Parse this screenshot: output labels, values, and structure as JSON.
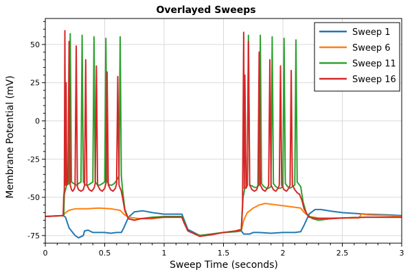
{
  "chart_data": {
    "type": "line",
    "title": "Overlayed Sweeps",
    "xlabel": "Sweep Time (seconds)",
    "ylabel": "Membrane Potential (mV)",
    "xlim": [
      0,
      3
    ],
    "ylim": [
      -80,
      67
    ],
    "xticks": [
      0,
      0.5,
      1,
      1.5,
      2,
      2.5,
      3
    ],
    "xtick_labels": [
      "0",
      "0.5",
      "1",
      "1.5",
      "2",
      "2.5",
      "3"
    ],
    "yticks": [
      -75,
      -50,
      -25,
      0,
      25,
      50
    ],
    "ytick_labels": [
      "-75",
      "-50",
      "-25",
      "0",
      "25",
      "50"
    ],
    "grid": true,
    "legend_position": "top-right",
    "series": [
      {
        "name": "Sweep 1",
        "color": "#1f77b4",
        "points": [
          [
            0,
            -62.5
          ],
          [
            0.15,
            -62
          ],
          [
            0.17,
            -63
          ],
          [
            0.2,
            -70
          ],
          [
            0.25,
            -75
          ],
          [
            0.28,
            -76.5
          ],
          [
            0.32,
            -75
          ],
          [
            0.33,
            -72
          ],
          [
            0.36,
            -71.5
          ],
          [
            0.4,
            -73
          ],
          [
            0.5,
            -73
          ],
          [
            0.55,
            -73.5
          ],
          [
            0.6,
            -73
          ],
          [
            0.64,
            -73
          ],
          [
            0.66,
            -70
          ],
          [
            0.7,
            -63
          ],
          [
            0.75,
            -59.5
          ],
          [
            0.82,
            -58.8
          ],
          [
            0.9,
            -60
          ],
          [
            1.0,
            -61
          ],
          [
            1.1,
            -61
          ],
          [
            1.15,
            -61
          ],
          [
            1.17,
            -65
          ],
          [
            1.2,
            -71
          ],
          [
            1.3,
            -75
          ],
          [
            1.4,
            -74
          ],
          [
            1.5,
            -73
          ],
          [
            1.6,
            -72.5
          ],
          [
            1.65,
            -72
          ],
          [
            1.67,
            -74
          ],
          [
            1.72,
            -74
          ],
          [
            1.75,
            -73
          ],
          [
            1.8,
            -73
          ],
          [
            1.9,
            -73.5
          ],
          [
            2.0,
            -73
          ],
          [
            2.1,
            -73
          ],
          [
            2.15,
            -72.5
          ],
          [
            2.18,
            -68
          ],
          [
            2.22,
            -61
          ],
          [
            2.27,
            -58
          ],
          [
            2.32,
            -58
          ],
          [
            2.4,
            -59
          ],
          [
            2.5,
            -60
          ],
          [
            2.7,
            -61
          ],
          [
            2.9,
            -61.5
          ],
          [
            3.0,
            -62
          ]
        ]
      },
      {
        "name": "Sweep 6",
        "color": "#ff7f0e",
        "points": [
          [
            0,
            -62.5
          ],
          [
            0.15,
            -62
          ],
          [
            0.17,
            -60
          ],
          [
            0.2,
            -58.5
          ],
          [
            0.25,
            -57.5
          ],
          [
            0.35,
            -57.5
          ],
          [
            0.45,
            -57
          ],
          [
            0.55,
            -57.5
          ],
          [
            0.63,
            -58.5
          ],
          [
            0.66,
            -61
          ],
          [
            0.7,
            -63
          ],
          [
            0.8,
            -64
          ],
          [
            0.9,
            -64
          ],
          [
            1.0,
            -63
          ],
          [
            1.15,
            -63
          ],
          [
            1.17,
            -67
          ],
          [
            1.2,
            -72
          ],
          [
            1.3,
            -75
          ],
          [
            1.4,
            -74
          ],
          [
            1.5,
            -73
          ],
          [
            1.6,
            -72.5
          ],
          [
            1.65,
            -72
          ],
          [
            1.67,
            -65
          ],
          [
            1.7,
            -60
          ],
          [
            1.75,
            -57
          ],
          [
            1.8,
            -55
          ],
          [
            1.85,
            -54
          ],
          [
            1.9,
            -54.5
          ],
          [
            2.0,
            -55.5
          ],
          [
            2.1,
            -56.5
          ],
          [
            2.15,
            -57
          ],
          [
            2.18,
            -60
          ],
          [
            2.22,
            -62.5
          ],
          [
            2.3,
            -63.5
          ],
          [
            2.5,
            -63.5
          ],
          [
            2.64,
            -63.5
          ],
          [
            2.66,
            -61
          ],
          [
            2.72,
            -61.5
          ],
          [
            2.9,
            -62
          ],
          [
            3.0,
            -62.5
          ]
        ]
      },
      {
        "name": "Sweep 11",
        "color": "#2ca02c",
        "points": [
          [
            0,
            -62.5
          ],
          [
            0.15,
            -62
          ],
          [
            0.155,
            -62
          ],
          [
            0.16,
            -48
          ],
          [
            0.18,
            -42
          ],
          [
            0.2,
            -41
          ],
          [
            0.21,
            57
          ],
          [
            0.22,
            -40
          ],
          [
            0.24,
            -41
          ],
          [
            0.26,
            -42
          ],
          [
            0.28,
            -41
          ],
          [
            0.3,
            -40
          ],
          [
            0.31,
            56
          ],
          [
            0.32,
            -40
          ],
          [
            0.34,
            -42
          ],
          [
            0.36,
            -42
          ],
          [
            0.38,
            -41
          ],
          [
            0.4,
            -40
          ],
          [
            0.41,
            55
          ],
          [
            0.42,
            -40
          ],
          [
            0.44,
            -42
          ],
          [
            0.46,
            -42
          ],
          [
            0.48,
            -41
          ],
          [
            0.5,
            -40
          ],
          [
            0.51,
            54
          ],
          [
            0.52,
            -40
          ],
          [
            0.54,
            -42
          ],
          [
            0.56,
            -42
          ],
          [
            0.58,
            -41
          ],
          [
            0.6,
            -39
          ],
          [
            0.62,
            -36
          ],
          [
            0.63,
            55
          ],
          [
            0.64,
            -36
          ],
          [
            0.65,
            -45
          ],
          [
            0.67,
            -58
          ],
          [
            0.7,
            -64
          ],
          [
            0.75,
            -65
          ],
          [
            0.8,
            -64
          ],
          [
            0.9,
            -63
          ],
          [
            1.0,
            -62.5
          ],
          [
            1.15,
            -62.5
          ],
          [
            1.17,
            -66
          ],
          [
            1.2,
            -72
          ],
          [
            1.3,
            -75
          ],
          [
            1.4,
            -74
          ],
          [
            1.5,
            -73
          ],
          [
            1.6,
            -72.5
          ],
          [
            1.65,
            -72
          ],
          [
            1.665,
            -50
          ],
          [
            1.68,
            -44
          ],
          [
            1.7,
            -42.5
          ],
          [
            1.71,
            56
          ],
          [
            1.72,
            -42
          ],
          [
            1.74,
            -42.5
          ],
          [
            1.76,
            -43.5
          ],
          [
            1.78,
            -43.5
          ],
          [
            1.8,
            -42
          ],
          [
            1.81,
            56
          ],
          [
            1.82,
            -41
          ],
          [
            1.84,
            -43
          ],
          [
            1.86,
            -44
          ],
          [
            1.88,
            -44
          ],
          [
            1.9,
            -43
          ],
          [
            1.91,
            55
          ],
          [
            1.92,
            -41
          ],
          [
            1.94,
            -43
          ],
          [
            1.96,
            -44
          ],
          [
            1.98,
            -44
          ],
          [
            2.0,
            -43
          ],
          [
            2.01,
            54
          ],
          [
            2.02,
            -41
          ],
          [
            2.04,
            -43
          ],
          [
            2.06,
            -44
          ],
          [
            2.08,
            -43
          ],
          [
            2.1,
            -42
          ],
          [
            2.11,
            53
          ],
          [
            2.12,
            -40
          ],
          [
            2.14,
            -42
          ],
          [
            2.15,
            -43
          ],
          [
            2.17,
            -53
          ],
          [
            2.2,
            -61
          ],
          [
            2.25,
            -64
          ],
          [
            2.3,
            -65
          ],
          [
            2.4,
            -64
          ],
          [
            2.5,
            -63.5
          ],
          [
            2.7,
            -63
          ],
          [
            3.0,
            -63
          ]
        ]
      },
      {
        "name": "Sweep 16",
        "color": "#d62728",
        "points": [
          [
            0,
            -62.5
          ],
          [
            0.15,
            -62
          ],
          [
            0.155,
            -50
          ],
          [
            0.16,
            -45
          ],
          [
            0.165,
            59
          ],
          [
            0.17,
            -42
          ],
          [
            0.175,
            25
          ],
          [
            0.18,
            -42
          ],
          [
            0.19,
            -40
          ],
          [
            0.2,
            52
          ],
          [
            0.21,
            -42
          ],
          [
            0.22,
            -45
          ],
          [
            0.23,
            -46
          ],
          [
            0.24,
            -45
          ],
          [
            0.25,
            -43
          ],
          [
            0.26,
            49
          ],
          [
            0.27,
            -43
          ],
          [
            0.28,
            -45
          ],
          [
            0.3,
            -46
          ],
          [
            0.32,
            -45
          ],
          [
            0.33,
            -42
          ],
          [
            0.34,
            40
          ],
          [
            0.35,
            -42
          ],
          [
            0.37,
            -45
          ],
          [
            0.39,
            -46
          ],
          [
            0.41,
            -44
          ],
          [
            0.42,
            -41
          ],
          [
            0.43,
            36
          ],
          [
            0.44,
            -42
          ],
          [
            0.46,
            -45
          ],
          [
            0.48,
            -46
          ],
          [
            0.5,
            -44
          ],
          [
            0.51,
            -41
          ],
          [
            0.52,
            32
          ],
          [
            0.53,
            -42
          ],
          [
            0.55,
            -45
          ],
          [
            0.57,
            -46
          ],
          [
            0.59,
            -44
          ],
          [
            0.6,
            -41
          ],
          [
            0.61,
            29
          ],
          [
            0.62,
            -42
          ],
          [
            0.64,
            -46
          ],
          [
            0.65,
            -50
          ],
          [
            0.67,
            -59
          ],
          [
            0.7,
            -64
          ],
          [
            0.75,
            -65
          ],
          [
            0.8,
            -64
          ],
          [
            0.9,
            -63.5
          ],
          [
            1.0,
            -63
          ],
          [
            1.15,
            -63
          ],
          [
            1.17,
            -67
          ],
          [
            1.2,
            -72
          ],
          [
            1.3,
            -75.5
          ],
          [
            1.4,
            -74.5
          ],
          [
            1.5,
            -73
          ],
          [
            1.6,
            -72
          ],
          [
            1.65,
            -71
          ],
          [
            1.66,
            -55
          ],
          [
            1.67,
            58
          ],
          [
            1.675,
            -44
          ],
          [
            1.68,
            30
          ],
          [
            1.69,
            -44
          ],
          [
            1.7,
            -42
          ],
          [
            1.71,
            52
          ],
          [
            1.72,
            -42
          ],
          [
            1.74,
            -45
          ],
          [
            1.76,
            -46
          ],
          [
            1.78,
            -45
          ],
          [
            1.79,
            -42
          ],
          [
            1.8,
            45
          ],
          [
            1.81,
            -42
          ],
          [
            1.83,
            -45
          ],
          [
            1.85,
            -46
          ],
          [
            1.87,
            -44
          ],
          [
            1.88,
            -42
          ],
          [
            1.89,
            40
          ],
          [
            1.9,
            -42
          ],
          [
            1.92,
            -45
          ],
          [
            1.94,
            -46
          ],
          [
            1.96,
            -44
          ],
          [
            1.97,
            -42
          ],
          [
            1.98,
            36
          ],
          [
            1.99,
            -42
          ],
          [
            2.01,
            -45
          ],
          [
            2.03,
            -46
          ],
          [
            2.05,
            -44
          ],
          [
            2.06,
            -42
          ],
          [
            2.07,
            33
          ],
          [
            2.08,
            -42
          ],
          [
            2.1,
            -45
          ],
          [
            2.12,
            -47
          ],
          [
            2.14,
            -48
          ],
          [
            2.16,
            -52
          ],
          [
            2.18,
            -58
          ],
          [
            2.22,
            -63
          ],
          [
            2.3,
            -64
          ],
          [
            2.4,
            -64
          ],
          [
            2.5,
            -63.5
          ],
          [
            2.7,
            -63
          ],
          [
            3.0,
            -63
          ]
        ]
      }
    ]
  }
}
